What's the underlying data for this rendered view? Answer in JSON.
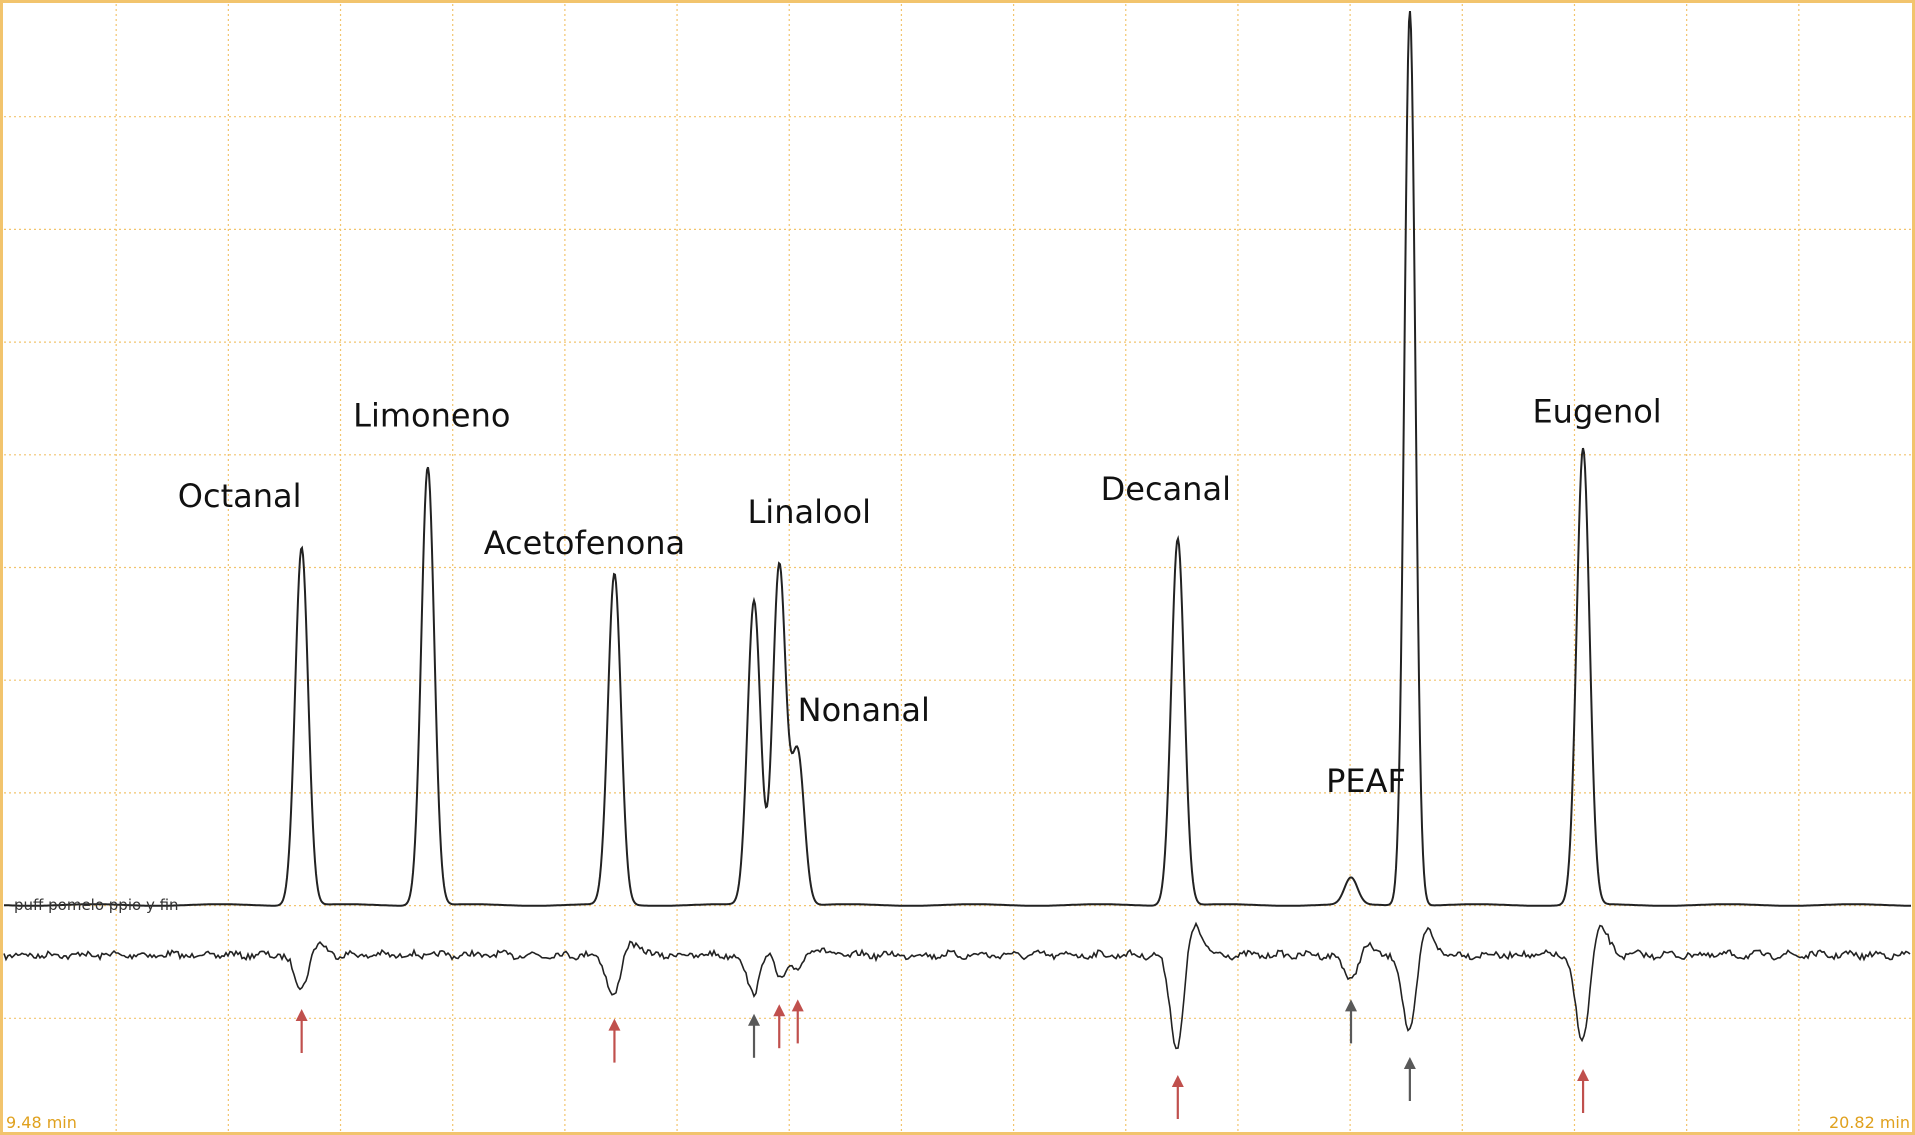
{
  "chart_data": {
    "type": "line",
    "title": "",
    "xlabel": "",
    "ylabel": "",
    "x_start_label": "9.48 min",
    "x_end_label": "20.82 min",
    "xlim": [
      9.48,
      20.82
    ],
    "grid": true,
    "series": [
      {
        "name": "puff pomelo ppio y fin",
        "role": "fid",
        "peaks": [
          {
            "label": "Octanal",
            "time": 11.25,
            "height": 0.4
          },
          {
            "label": "Limoneno",
            "time": 12.0,
            "height": 0.49
          },
          {
            "label": "Acetofenona",
            "time": 13.11,
            "height": 0.37
          },
          {
            "label": "",
            "time": 13.94,
            "height": 0.34
          },
          {
            "label": "Linalool",
            "time": 14.09,
            "height": 0.38
          },
          {
            "label": "Nonanal",
            "time": 14.2,
            "height": 0.17
          },
          {
            "label": "Decanal",
            "time": 16.46,
            "height": 0.41
          },
          {
            "label": "PEAF",
            "time": 17.49,
            "height": 0.03
          },
          {
            "label": "",
            "time": 17.84,
            "height": 1.0
          },
          {
            "label": "Eugenol",
            "time": 18.87,
            "height": 0.51
          }
        ]
      },
      {
        "name": "",
        "role": "ead",
        "responses": [
          {
            "time": 11.25,
            "depth": 0.3
          },
          {
            "time": 13.11,
            "depth": 0.38
          },
          {
            "time": 13.94,
            "depth": 0.34
          },
          {
            "time": 14.09,
            "depth": 0.26
          },
          {
            "time": 14.2,
            "depth": 0.22
          },
          {
            "time": 16.46,
            "depth": 0.85
          },
          {
            "time": 17.49,
            "depth": 0.22
          },
          {
            "time": 17.84,
            "depth": 0.7
          },
          {
            "time": 18.87,
            "depth": 0.8
          }
        ]
      }
    ],
    "arrows": [
      {
        "time": 11.25,
        "color": "#c0504d"
      },
      {
        "time": 13.11,
        "color": "#c0504d"
      },
      {
        "time": 13.94,
        "color": "#595959"
      },
      {
        "time": 14.09,
        "color": "#c0504d"
      },
      {
        "time": 14.2,
        "color": "#c0504d"
      },
      {
        "time": 16.46,
        "color": "#c0504d"
      },
      {
        "time": 17.49,
        "color": "#595959"
      },
      {
        "time": 17.84,
        "color": "#595959"
      },
      {
        "time": 18.87,
        "color": "#c0504d"
      }
    ]
  },
  "colors": {
    "grid": "#f2c46d",
    "border": "#f2c46d",
    "trace": "#222222",
    "time_text": "#e0a11e",
    "arrow_red": "#c0504d",
    "arrow_gray": "#595959"
  }
}
